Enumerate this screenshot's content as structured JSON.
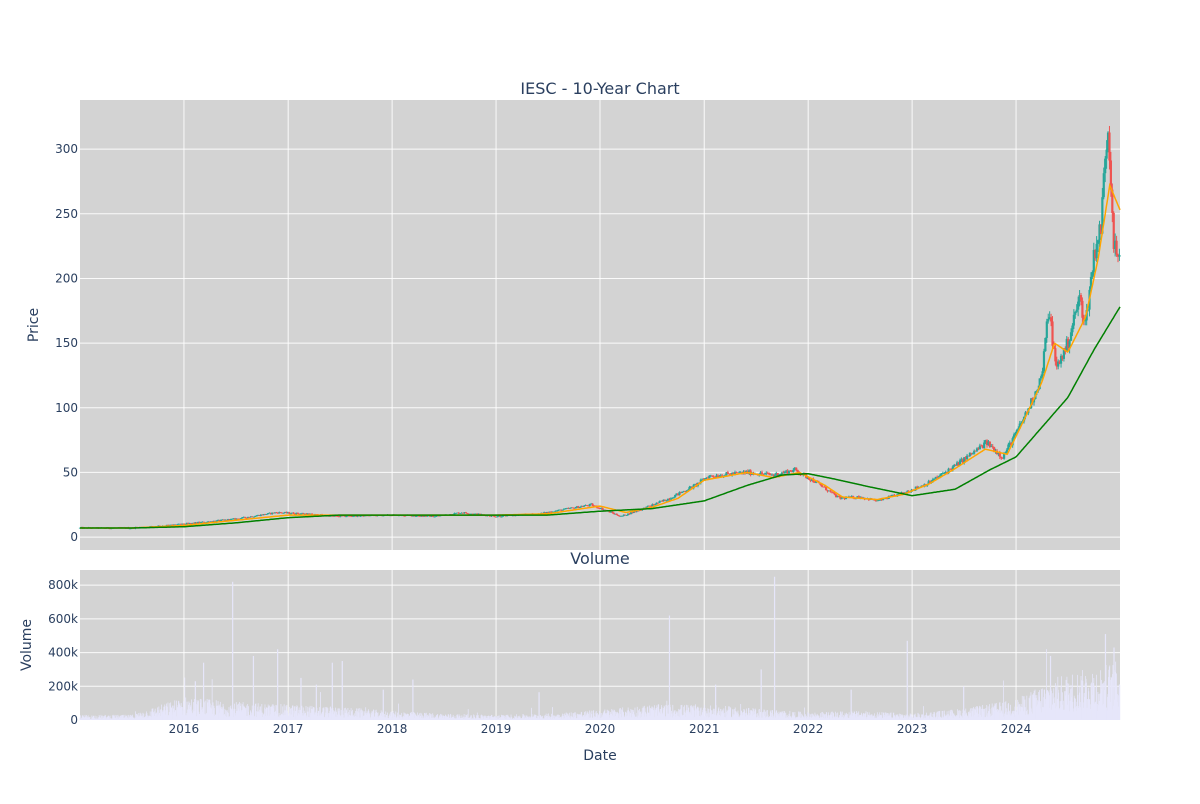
{
  "chart_data": [
    {
      "type": "candlestick",
      "title": "IESC - 10-Year Chart",
      "xlabel": "",
      "ylabel": "Price",
      "ylim": [
        -10,
        338
      ],
      "yticks": [
        0,
        50,
        100,
        150,
        200,
        250,
        300
      ],
      "background": "#d3d3d3",
      "grid": true,
      "colors": {
        "up": "#26a69a",
        "down": "#ef5350",
        "ma_short": "#ffa500",
        "ma_long": "#008000"
      },
      "series": [
        {
          "name": "",
          "kind": "close_price",
          "points": [
            [
              "2015-01-01",
              7
            ],
            [
              "2015-07-01",
              7
            ],
            [
              "2016-01-01",
              10
            ],
            [
              "2016-07-01",
              14
            ],
            [
              "2016-11-20",
              19
            ],
            [
              "2017-03-01",
              18
            ],
            [
              "2017-06-15",
              16
            ],
            [
              "2018-01-01",
              17
            ],
            [
              "2018-06-01",
              16
            ],
            [
              "2018-09-01",
              19
            ],
            [
              "2019-01-01",
              16
            ],
            [
              "2019-06-01",
              18
            ],
            [
              "2019-12-01",
              25
            ],
            [
              "2020-03-15",
              16
            ],
            [
              "2020-06-01",
              22
            ],
            [
              "2020-09-01",
              30
            ],
            [
              "2020-12-01",
              40
            ],
            [
              "2021-01-15",
              47
            ],
            [
              "2021-06-01",
              50
            ],
            [
              "2021-09-01",
              48
            ],
            [
              "2021-11-15",
              52
            ],
            [
              "2022-02-01",
              42
            ],
            [
              "2022-04-20",
              30
            ],
            [
              "2022-07-01",
              31
            ],
            [
              "2022-09-01",
              28
            ],
            [
              "2022-12-01",
              34
            ],
            [
              "2023-03-01",
              42
            ],
            [
              "2023-06-01",
              55
            ],
            [
              "2023-09-20",
              73
            ],
            [
              "2023-11-15",
              62
            ],
            [
              "2024-01-01",
              80
            ],
            [
              "2024-02-15",
              100
            ],
            [
              "2024-04-01",
              125
            ],
            [
              "2024-04-25",
              178
            ],
            [
              "2024-05-20",
              130
            ],
            [
              "2024-07-01",
              150
            ],
            [
              "2024-08-10",
              185
            ],
            [
              "2024-09-01",
              165
            ],
            [
              "2024-10-01",
              220
            ],
            [
              "2024-10-25",
              240
            ],
            [
              "2024-11-10",
              300
            ],
            [
              "2024-11-20",
              318
            ],
            [
              "2024-12-10",
              225
            ],
            [
              "2024-12-31",
              210
            ]
          ]
        },
        {
          "name": "",
          "kind": "moving_average_short",
          "points": [
            [
              "2015-01-01",
              7
            ],
            [
              "2015-07-01",
              7
            ],
            [
              "2016-01-01",
              9
            ],
            [
              "2016-07-01",
              13
            ],
            [
              "2017-01-01",
              17
            ],
            [
              "2017-07-01",
              17
            ],
            [
              "2018-01-01",
              17
            ],
            [
              "2018-07-01",
              17
            ],
            [
              "2019-01-01",
              17
            ],
            [
              "2019-07-01",
              18
            ],
            [
              "2020-01-01",
              24
            ],
            [
              "2020-04-01",
              19
            ],
            [
              "2020-07-01",
              23
            ],
            [
              "2020-10-01",
              30
            ],
            [
              "2021-01-01",
              44
            ],
            [
              "2021-06-01",
              50
            ],
            [
              "2021-09-01",
              46
            ],
            [
              "2021-12-01",
              50
            ],
            [
              "2022-03-01",
              40
            ],
            [
              "2022-05-01",
              31
            ],
            [
              "2022-09-01",
              29
            ],
            [
              "2022-12-01",
              33
            ],
            [
              "2023-03-01",
              41
            ],
            [
              "2023-06-01",
              53
            ],
            [
              "2023-09-15",
              68
            ],
            [
              "2023-12-01",
              64
            ],
            [
              "2024-02-01",
              92
            ],
            [
              "2024-04-01",
              120
            ],
            [
              "2024-05-15",
              150
            ],
            [
              "2024-07-01",
              143
            ],
            [
              "2024-09-01",
              170
            ],
            [
              "2024-10-15",
              215
            ],
            [
              "2024-11-25",
              272
            ],
            [
              "2024-12-31",
              253
            ]
          ]
        },
        {
          "name": "",
          "kind": "moving_average_long",
          "points": [
            [
              "2015-01-01",
              7
            ],
            [
              "2015-07-01",
              7
            ],
            [
              "2016-01-01",
              8
            ],
            [
              "2016-07-01",
              11
            ],
            [
              "2017-01-01",
              15
            ],
            [
              "2017-07-01",
              17
            ],
            [
              "2018-01-01",
              17
            ],
            [
              "2018-07-01",
              17
            ],
            [
              "2019-01-01",
              17
            ],
            [
              "2019-07-01",
              17
            ],
            [
              "2020-01-01",
              20
            ],
            [
              "2020-07-01",
              22
            ],
            [
              "2021-01-01",
              28
            ],
            [
              "2021-06-01",
              40
            ],
            [
              "2021-10-01",
              48
            ],
            [
              "2022-01-01",
              49
            ],
            [
              "2022-04-01",
              45
            ],
            [
              "2022-08-01",
              39
            ],
            [
              "2023-01-01",
              32
            ],
            [
              "2023-06-01",
              37
            ],
            [
              "2023-10-01",
              52
            ],
            [
              "2024-01-01",
              62
            ],
            [
              "2024-04-01",
              85
            ],
            [
              "2024-07-01",
              108
            ],
            [
              "2024-10-01",
              145
            ],
            [
              "2024-12-31",
              178
            ]
          ]
        }
      ]
    },
    {
      "type": "bar",
      "title": "Volume",
      "xlabel": "Date",
      "ylabel": "Volume",
      "ylim": [
        0,
        890000
      ],
      "yticks": [
        0,
        200000,
        400000,
        600000,
        800000
      ],
      "ytick_labels": [
        "0",
        "200k",
        "400k",
        "600k",
        "800k"
      ],
      "xlim": [
        "2015-01-01",
        "2024-12-31"
      ],
      "xticks": [
        "2016-01-01",
        "2017-01-01",
        "2018-01-01",
        "2019-01-01",
        "2020-01-01",
        "2021-01-01",
        "2022-01-01",
        "2023-01-01",
        "2024-01-01"
      ],
      "xtick_labels": [
        "2016",
        "2017",
        "2018",
        "2019",
        "2020",
        "2021",
        "2022",
        "2023",
        "2024"
      ],
      "color": "#e6e6fa",
      "background": "#d3d3d3",
      "grid": true,
      "levels": [
        [
          "2015-01-01",
          20000
        ],
        [
          "2015-07-01",
          20000
        ],
        [
          "2016-01-01",
          90000
        ],
        [
          "2016-07-01",
          70000
        ],
        [
          "2017-01-01",
          60000
        ],
        [
          "2017-07-01",
          50000
        ],
        [
          "2018-01-01",
          35000
        ],
        [
          "2018-07-01",
          25000
        ],
        [
          "2019-01-01",
          20000
        ],
        [
          "2019-07-01",
          25000
        ],
        [
          "2020-01-01",
          40000
        ],
        [
          "2020-07-01",
          60000
        ],
        [
          "2021-01-01",
          60000
        ],
        [
          "2021-07-01",
          45000
        ],
        [
          "2022-01-01",
          30000
        ],
        [
          "2022-07-01",
          35000
        ],
        [
          "2023-01-01",
          25000
        ],
        [
          "2023-07-01",
          45000
        ],
        [
          "2024-01-01",
          80000
        ],
        [
          "2024-06-01",
          170000
        ],
        [
          "2024-12-31",
          230000
        ]
      ],
      "spikes": [
        [
          "2016-02-10",
          230000
        ],
        [
          "2016-03-10",
          340000
        ],
        [
          "2016-06-20",
          820000
        ],
        [
          "2016-09-01",
          380000
        ],
        [
          "2016-11-25",
          420000
        ],
        [
          "2017-02-15",
          250000
        ],
        [
          "2017-04-10",
          210000
        ],
        [
          "2017-06-05",
          340000
        ],
        [
          "2017-07-10",
          350000
        ],
        [
          "2017-12-01",
          180000
        ],
        [
          "2018-03-15",
          240000
        ],
        [
          "2019-06-01",
          165000
        ],
        [
          "2020-09-01",
          620000
        ],
        [
          "2021-02-10",
          210000
        ],
        [
          "2021-07-20",
          300000
        ],
        [
          "2021-09-05",
          850000
        ],
        [
          "2022-06-01",
          180000
        ],
        [
          "2022-12-15",
          470000
        ],
        [
          "2023-07-01",
          200000
        ],
        [
          "2024-05-01",
          380000
        ],
        [
          "2024-11-10",
          510000
        ],
        [
          "2024-12-10",
          430000
        ]
      ]
    }
  ]
}
